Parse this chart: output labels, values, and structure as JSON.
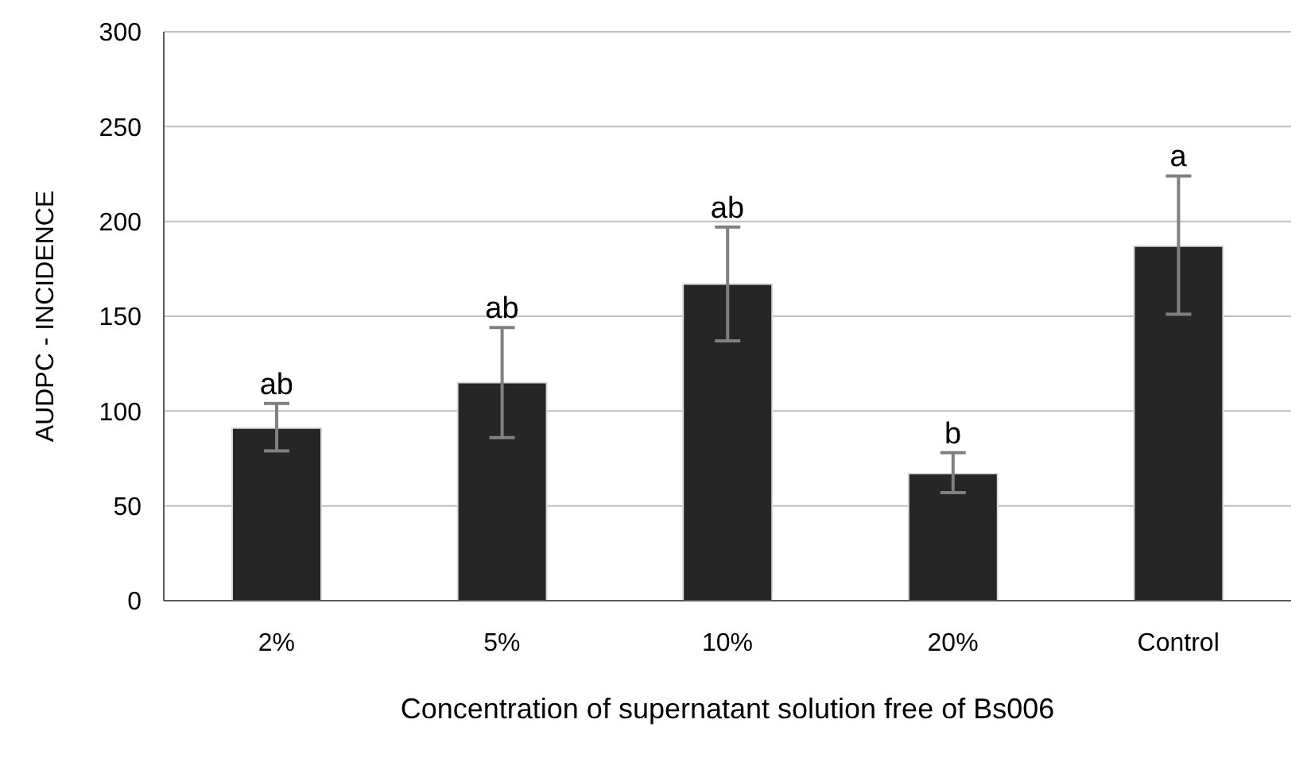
{
  "chart_data": {
    "type": "bar",
    "xlabel": "Concentration of supernatant solution free of Bs006",
    "ylabel": "AUDPC - INCIDENCE",
    "categories": [
      "2%",
      "5%",
      "10%",
      "20%",
      "Control"
    ],
    "values": [
      91,
      115,
      167,
      67,
      187
    ],
    "errors": [
      [
        79,
        104
      ],
      [
        86,
        144
      ],
      [
        137,
        197
      ],
      [
        57,
        78
      ],
      [
        151,
        224
      ]
    ],
    "color": "#262626",
    "ylim": [
      0,
      300
    ],
    "yticks": [
      0,
      50,
      100,
      150,
      200,
      250,
      300
    ],
    "grid": "y",
    "annotations": [
      {
        "text": "ab",
        "x": "2%",
        "y": 104
      },
      {
        "text": "ab",
        "x": "5%",
        "y": 144
      },
      {
        "text": "ab",
        "x": "10%",
        "y": 197
      },
      {
        "text": "b",
        "x": "20%",
        "y": 78
      },
      {
        "text": "a",
        "x": "Control",
        "y": 224
      }
    ]
  }
}
